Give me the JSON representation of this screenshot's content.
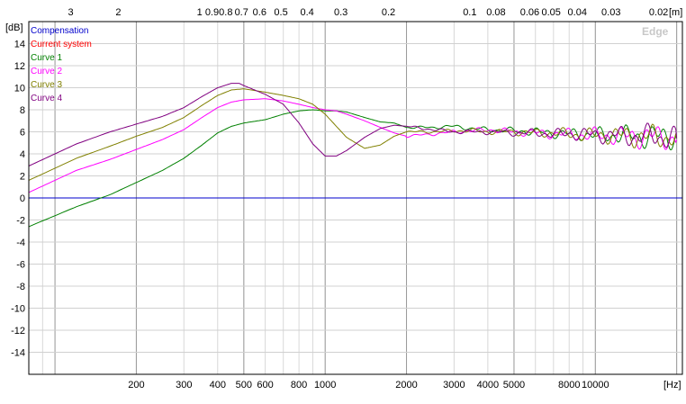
{
  "chart_data": {
    "type": "line",
    "x_unit_label": "[Hz]",
    "y_unit_label": "[dB]",
    "top_unit_label": "[m]",
    "watermark": "Edge",
    "xscale": "log",
    "xlim": [
      80,
      21000
    ],
    "ylim": [
      -16,
      16
    ],
    "grid": true,
    "legend_position": "top-left",
    "y_ticks": [
      14,
      12,
      10,
      8,
      6,
      4,
      2,
      0,
      -2,
      -4,
      -6,
      -8,
      -10,
      -12,
      -14
    ],
    "x_ticks": [
      {
        "value": 200,
        "label": "200"
      },
      {
        "value": 300,
        "label": "300"
      },
      {
        "value": 400,
        "label": "400"
      },
      {
        "value": 500,
        "label": "500"
      },
      {
        "value": 600,
        "label": "600"
      },
      {
        "value": 800,
        "label": "800"
      },
      {
        "value": 1000,
        "label": "1000"
      },
      {
        "value": 2000,
        "label": "2000"
      },
      {
        "value": 3000,
        "label": "3000"
      },
      {
        "value": 4000,
        "label": "4000"
      },
      {
        "value": 5000,
        "label": "5000"
      },
      {
        "value": 8000,
        "label": "8000"
      },
      {
        "value": 10000,
        "label": "10000"
      }
    ],
    "top_ticks": [
      {
        "value": 3,
        "label": "3"
      },
      {
        "value": 2,
        "label": "2"
      },
      {
        "value": 1,
        "label": "1"
      },
      {
        "value": 0.9,
        "label": "0.9"
      },
      {
        "value": 0.8,
        "label": "0.8"
      },
      {
        "value": 0.7,
        "label": "0.7"
      },
      {
        "value": 0.6,
        "label": "0.6"
      },
      {
        "value": 0.5,
        "label": "0.5"
      },
      {
        "value": 0.4,
        "label": "0.4"
      },
      {
        "value": 0.3,
        "label": "0.3"
      },
      {
        "value": 0.2,
        "label": "0.2"
      },
      {
        "value": 0.1,
        "label": "0.1"
      },
      {
        "value": 0.08,
        "label": "0.08"
      },
      {
        "value": 0.06,
        "label": "0.06"
      },
      {
        "value": 0.05,
        "label": "0.05"
      },
      {
        "value": 0.04,
        "label": "0.04"
      },
      {
        "value": 0.03,
        "label": "0.03"
      },
      {
        "value": 0.02,
        "label": "0.02"
      }
    ],
    "series": [
      {
        "name": "Compensation",
        "color": "#0000cc",
        "x": [
          80,
          21000
        ],
        "y": [
          0,
          0
        ]
      },
      {
        "name": "Current system",
        "color": "#ff0000",
        "x": [],
        "y": []
      },
      {
        "name": "Curve 1",
        "color": "#008000",
        "x": [
          80,
          120,
          160,
          200,
          250,
          300,
          350,
          400,
          450,
          500,
          600,
          700,
          800,
          900,
          1000,
          1100,
          1200,
          1400,
          1600,
          1800,
          2000,
          2500,
          3000,
          3500,
          4000,
          5000,
          6000,
          7000,
          8000,
          9000,
          10000,
          12000,
          14000,
          16000,
          18000,
          20000
        ],
        "y": [
          -2.6,
          -0.8,
          0.3,
          1.4,
          2.5,
          3.6,
          4.8,
          5.9,
          6.5,
          6.8,
          7.1,
          7.6,
          7.9,
          8.0,
          7.9,
          7.9,
          7.8,
          7.3,
          6.9,
          6.8,
          6.4,
          6.4,
          6.5,
          6.3,
          6.2,
          6.1,
          6.0,
          5.9,
          5.8,
          5.8,
          5.7,
          5.7,
          5.6,
          5.6,
          5.6,
          5.5
        ]
      },
      {
        "name": "Curve 2",
        "color": "#ff00ff",
        "x": [
          80,
          120,
          160,
          200,
          250,
          300,
          350,
          400,
          450,
          500,
          600,
          700,
          800,
          900,
          1000,
          1100,
          1200,
          1400,
          1600,
          1800,
          2000,
          2500,
          3000,
          3500,
          4000,
          5000,
          6000,
          7000,
          8000,
          9000,
          10000,
          12000,
          14000,
          16000,
          18000,
          20000
        ],
        "y": [
          0.5,
          2.5,
          3.5,
          4.4,
          5.3,
          6.2,
          7.3,
          8.2,
          8.7,
          8.9,
          9.0,
          8.8,
          8.5,
          8.2,
          8.0,
          7.9,
          7.6,
          7.0,
          6.4,
          5.9,
          5.6,
          5.8,
          6.0,
          6.1,
          6.2,
          6.0,
          5.9,
          5.8,
          5.8,
          5.7,
          5.7,
          5.6,
          5.6,
          5.6,
          5.5,
          5.3
        ]
      },
      {
        "name": "Curve 3",
        "color": "#808000",
        "x": [
          80,
          120,
          160,
          200,
          250,
          300,
          350,
          400,
          450,
          500,
          600,
          700,
          800,
          900,
          1000,
          1100,
          1200,
          1400,
          1600,
          1800,
          2000,
          2500,
          3000,
          3500,
          4000,
          5000,
          6000,
          7000,
          8000,
          9000,
          10000,
          12000,
          14000,
          16000,
          18000,
          20000
        ],
        "y": [
          1.6,
          3.6,
          4.7,
          5.6,
          6.4,
          7.3,
          8.4,
          9.3,
          9.8,
          9.9,
          9.6,
          9.3,
          9.0,
          8.5,
          7.6,
          6.5,
          5.5,
          4.5,
          4.8,
          5.6,
          6.0,
          6.0,
          6.1,
          6.1,
          6.0,
          6.0,
          5.9,
          5.9,
          5.8,
          5.7,
          5.7,
          5.7,
          5.6,
          5.6,
          5.5,
          5.4
        ]
      },
      {
        "name": "Curve 4",
        "color": "#800080",
        "x": [
          80,
          120,
          160,
          200,
          250,
          300,
          350,
          400,
          450,
          480,
          500,
          600,
          700,
          800,
          900,
          1000,
          1100,
          1200,
          1400,
          1600,
          1800,
          2000,
          2500,
          3000,
          3500,
          4000,
          5000,
          6000,
          7000,
          8000,
          9000,
          10000,
          12000,
          14000,
          16000,
          18000,
          20000
        ],
        "y": [
          2.9,
          4.9,
          6.0,
          6.7,
          7.4,
          8.2,
          9.2,
          10.0,
          10.4,
          10.4,
          10.2,
          9.4,
          8.5,
          6.8,
          4.9,
          3.8,
          3.8,
          4.3,
          5.5,
          6.3,
          6.6,
          6.5,
          6.2,
          6.0,
          6.0,
          6.0,
          5.9,
          5.9,
          5.8,
          5.8,
          5.8,
          5.7,
          5.7,
          5.6,
          5.6,
          5.5,
          5.4
        ]
      }
    ]
  }
}
